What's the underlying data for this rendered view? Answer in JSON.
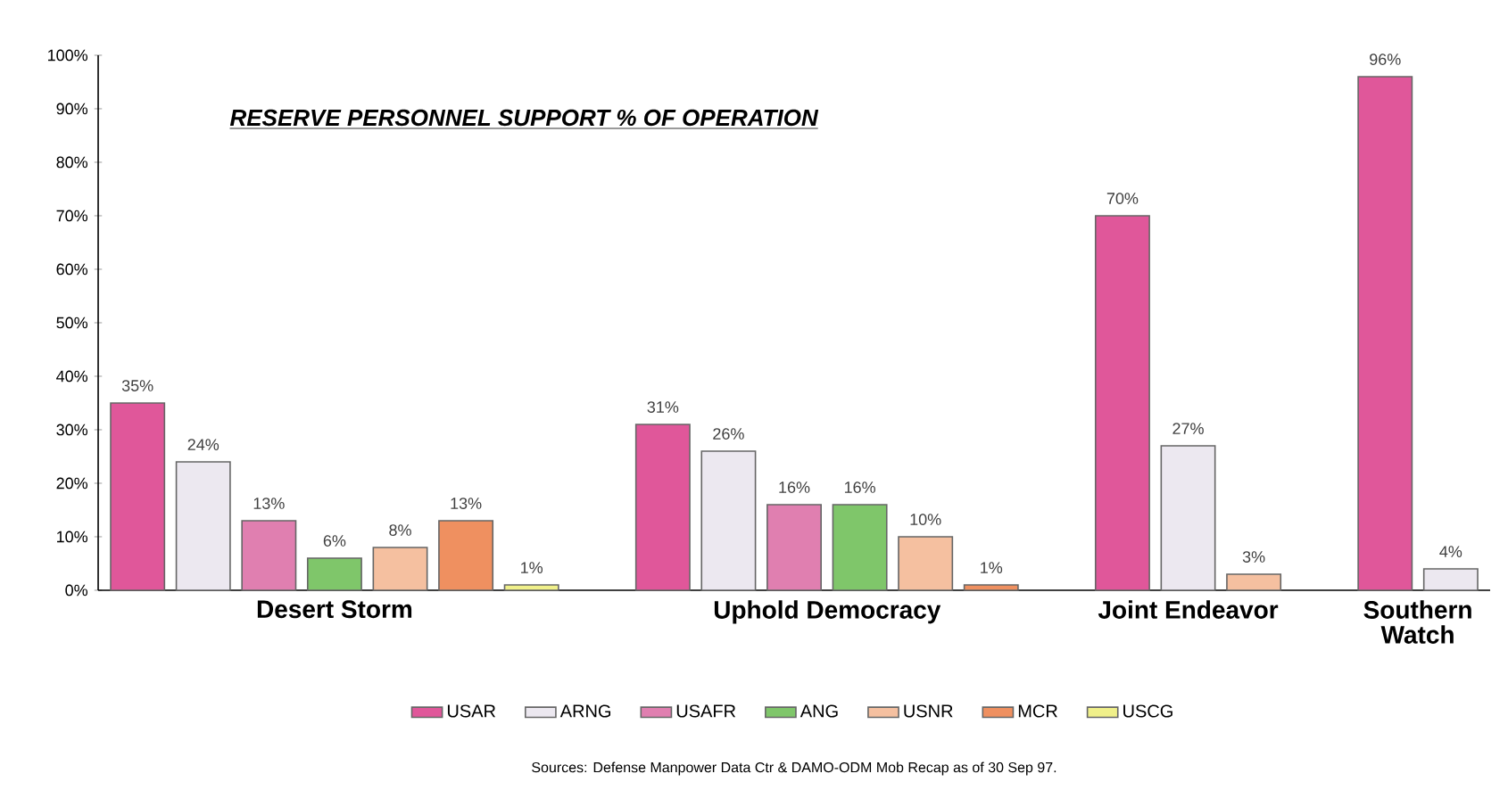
{
  "chart_data": {
    "type": "bar",
    "title": "RESERVE PERSONNEL SUPPORT % OF OPERATION",
    "categories": [
      "Desert Storm",
      "Uphold Democracy",
      "Joint Endeavor",
      "Southern Watch"
    ],
    "series": [
      {
        "name": "USAR",
        "color": "#e0579a",
        "values": [
          35,
          31,
          70,
          96
        ],
        "value_labels": [
          "35%",
          "31%",
          "70%",
          "96%"
        ]
      },
      {
        "name": "ARNG",
        "color": "#ece8f0",
        "values": [
          24,
          26,
          27,
          4
        ],
        "value_labels": [
          "24%",
          "26%",
          "27%",
          "4%"
        ]
      },
      {
        "name": "USAFR",
        "color": "#e07fb0",
        "values": [
          13,
          16,
          null,
          null
        ],
        "value_labels": [
          "13%",
          "16%",
          null,
          null
        ]
      },
      {
        "name": "ANG",
        "color": "#7fc66a",
        "values": [
          6,
          16,
          null,
          null
        ],
        "value_labels": [
          "6%",
          "16%",
          null,
          null
        ]
      },
      {
        "name": "USNR",
        "color": "#f5c0a0",
        "values": [
          8,
          10,
          3,
          null
        ],
        "value_labels": [
          "8%",
          "10%",
          "3%",
          null
        ]
      },
      {
        "name": "MCR",
        "color": "#ef9060",
        "values": [
          13,
          1,
          null,
          null
        ],
        "value_labels": [
          "13%",
          "1%",
          null,
          null
        ]
      },
      {
        "name": "USCG",
        "color": "#f0f08a",
        "values": [
          1,
          null,
          null,
          null
        ],
        "value_labels": [
          "1%",
          null,
          null,
          null
        ]
      }
    ],
    "ylim": [
      0,
      100
    ],
    "yticks": [
      {
        "value": 0,
        "label": "0%"
      },
      {
        "value": 10,
        "label": "10%"
      },
      {
        "value": 20,
        "label": "20%"
      },
      {
        "value": 30,
        "label": "30%"
      },
      {
        "value": 40,
        "label": "40%"
      },
      {
        "value": 50,
        "label": "50%"
      },
      {
        "value": 60,
        "label": "60%"
      },
      {
        "value": 70,
        "label": "70%"
      },
      {
        "value": 80,
        "label": "80%"
      },
      {
        "value": 90,
        "label": "90%"
      },
      {
        "value": 100,
        "label": "100%"
      }
    ],
    "legend": "bottom",
    "grid": false,
    "annotations": [
      "Sources: Defense Manpower Data Ctr & DAMO-ODM Mob Recap as of 30 Sep 97."
    ]
  }
}
